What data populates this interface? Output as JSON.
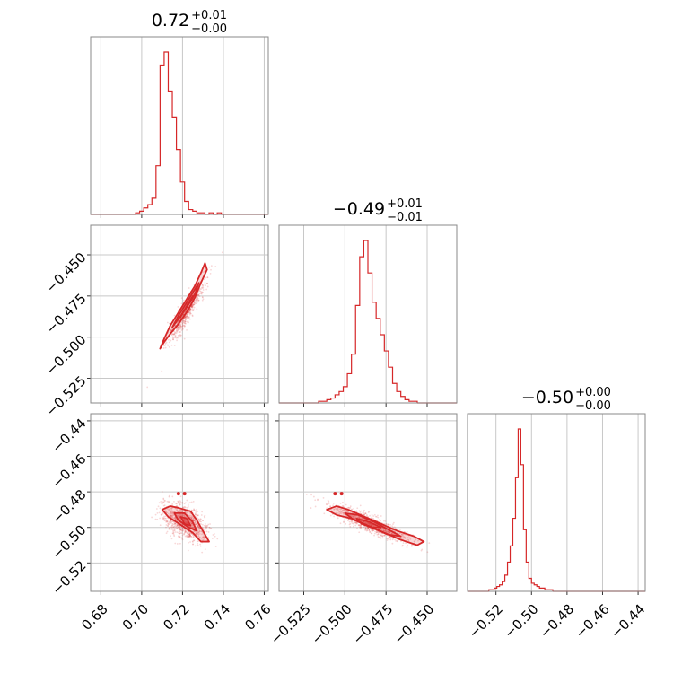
{
  "chart_data": {
    "type": "corner",
    "color": "#d62728",
    "parameters": [
      {
        "name": "p0",
        "xlim": [
          0.675,
          0.762
        ],
        "ticks": [
          0.68,
          0.7,
          0.72,
          0.74,
          0.76
        ],
        "tick_labels": [
          "0.68",
          "0.70",
          "0.72",
          "0.74",
          "0.76"
        ],
        "title": {
          "base": "0.72",
          "sup": "+0.01",
          "sub": "−0.00"
        },
        "hist": {
          "start": 0.695,
          "width": 0.002,
          "counts": [
            0.0,
            0.01,
            0.02,
            0.04,
            0.06,
            0.1,
            0.3,
            0.92,
            1.0,
            0.76,
            0.6,
            0.4,
            0.2,
            0.08,
            0.03,
            0.02,
            0.01,
            0.01,
            0.0,
            0.01,
            0.0,
            0.01
          ]
        }
      },
      {
        "name": "p1",
        "xlim": [
          -0.54,
          -0.432
        ],
        "ylim": [
          -0.54,
          -0.432
        ],
        "ticks": [
          -0.525,
          -0.5,
          -0.475,
          -0.45
        ],
        "tick_labels": [
          "−0.525",
          "−0.500",
          "−0.475",
          "−0.450"
        ],
        "title": {
          "base": "−0.49",
          "sup": "+0.01",
          "sub": "−0.01"
        },
        "hist": {
          "start": -0.516,
          "width": 0.0025,
          "counts": [
            0.01,
            0.01,
            0.02,
            0.03,
            0.05,
            0.07,
            0.1,
            0.18,
            0.3,
            0.6,
            0.9,
            1.0,
            0.8,
            0.62,
            0.52,
            0.42,
            0.32,
            0.22,
            0.12,
            0.07,
            0.04,
            0.02,
            0.01,
            0.01
          ]
        }
      },
      {
        "name": "p2",
        "xlim": [
          -0.536,
          -0.436
        ],
        "ylim": [
          -0.536,
          -0.436
        ],
        "ticks": [
          -0.52,
          -0.5,
          -0.48,
          -0.46,
          -0.44
        ],
        "tick_labels": [
          "−0.52",
          "−0.50",
          "−0.48",
          "−0.46",
          "−0.44"
        ],
        "title": {
          "base": "−0.50",
          "sup": "+0.00",
          "sub": "−0.00"
        },
        "hist": {
          "start": -0.524,
          "width": 0.0015,
          "counts": [
            0.01,
            0.01,
            0.02,
            0.03,
            0.04,
            0.06,
            0.1,
            0.18,
            0.28,
            0.45,
            0.7,
            1.0,
            0.78,
            0.38,
            0.18,
            0.08,
            0.05,
            0.04,
            0.03,
            0.02,
            0.02,
            0.01,
            0.01,
            0.01
          ]
        }
      }
    ],
    "contours": {
      "p1_vs_p0": {
        "outer": [
          [
            0.709,
            -0.507
          ],
          [
            0.711,
            -0.501
          ],
          [
            0.714,
            -0.493
          ],
          [
            0.718,
            -0.485
          ],
          [
            0.722,
            -0.477
          ],
          [
            0.726,
            -0.469
          ],
          [
            0.729,
            -0.461
          ],
          [
            0.731,
            -0.455
          ],
          [
            0.732,
            -0.459
          ],
          [
            0.729,
            -0.467
          ],
          [
            0.726,
            -0.476
          ],
          [
            0.722,
            -0.485
          ],
          [
            0.718,
            -0.492
          ],
          [
            0.714,
            -0.498
          ],
          [
            0.711,
            -0.503
          ]
        ],
        "mid": [
          [
            0.715,
            -0.494
          ],
          [
            0.718,
            -0.487
          ],
          [
            0.722,
            -0.479
          ],
          [
            0.726,
            -0.471
          ],
          [
            0.728,
            -0.467
          ],
          [
            0.726,
            -0.474
          ],
          [
            0.722,
            -0.482
          ],
          [
            0.718,
            -0.489
          ]
        ],
        "inner": [
          [
            0.719,
            -0.488
          ],
          [
            0.722,
            -0.481
          ],
          [
            0.725,
            -0.475
          ],
          [
            0.723,
            -0.48
          ],
          [
            0.72,
            -0.485
          ]
        ]
      },
      "p2_vs_p0": {
        "outer": [
          [
            0.71,
            -0.49
          ],
          [
            0.714,
            -0.488
          ],
          [
            0.718,
            -0.489
          ],
          [
            0.724,
            -0.491
          ],
          [
            0.727,
            -0.496
          ],
          [
            0.73,
            -0.502
          ],
          [
            0.733,
            -0.508
          ],
          [
            0.729,
            -0.508
          ],
          [
            0.725,
            -0.503
          ],
          [
            0.721,
            -0.5
          ],
          [
            0.717,
            -0.497
          ],
          [
            0.713,
            -0.494
          ]
        ],
        "mid": [
          [
            0.716,
            -0.492
          ],
          [
            0.721,
            -0.492
          ],
          [
            0.725,
            -0.497
          ],
          [
            0.727,
            -0.502
          ],
          [
            0.723,
            -0.5
          ],
          [
            0.718,
            -0.496
          ]
        ],
        "inner": [
          [
            0.719,
            -0.494
          ],
          [
            0.722,
            -0.495
          ],
          [
            0.724,
            -0.499
          ],
          [
            0.721,
            -0.498
          ]
        ]
      },
      "p2_vs_p1": {
        "outer": [
          [
            -0.511,
            -0.49
          ],
          [
            -0.505,
            -0.488
          ],
          [
            -0.498,
            -0.49
          ],
          [
            -0.488,
            -0.494
          ],
          [
            -0.478,
            -0.498
          ],
          [
            -0.468,
            -0.502
          ],
          [
            -0.458,
            -0.505
          ],
          [
            -0.452,
            -0.508
          ],
          [
            -0.456,
            -0.51
          ],
          [
            -0.466,
            -0.507
          ],
          [
            -0.476,
            -0.503
          ],
          [
            -0.486,
            -0.499
          ],
          [
            -0.496,
            -0.495
          ],
          [
            -0.505,
            -0.493
          ]
        ],
        "mid": [
          [
            -0.5,
            -0.492
          ],
          [
            -0.492,
            -0.493
          ],
          [
            -0.482,
            -0.497
          ],
          [
            -0.472,
            -0.502
          ],
          [
            -0.466,
            -0.505
          ],
          [
            -0.474,
            -0.504
          ],
          [
            -0.484,
            -0.5
          ],
          [
            -0.494,
            -0.496
          ]
        ],
        "inner": [
          [
            -0.493,
            -0.495
          ],
          [
            -0.485,
            -0.497
          ],
          [
            -0.478,
            -0.5
          ],
          [
            -0.484,
            -0.5
          ],
          [
            -0.49,
            -0.498
          ]
        ]
      }
    },
    "outlier_points": {
      "p2_vs_p0": [
        [
          0.718,
          -0.481
        ],
        [
          0.721,
          -0.481
        ]
      ],
      "p2_vs_p1": [
        [
          -0.506,
          -0.481
        ],
        [
          -0.502,
          -0.481
        ]
      ]
    }
  }
}
